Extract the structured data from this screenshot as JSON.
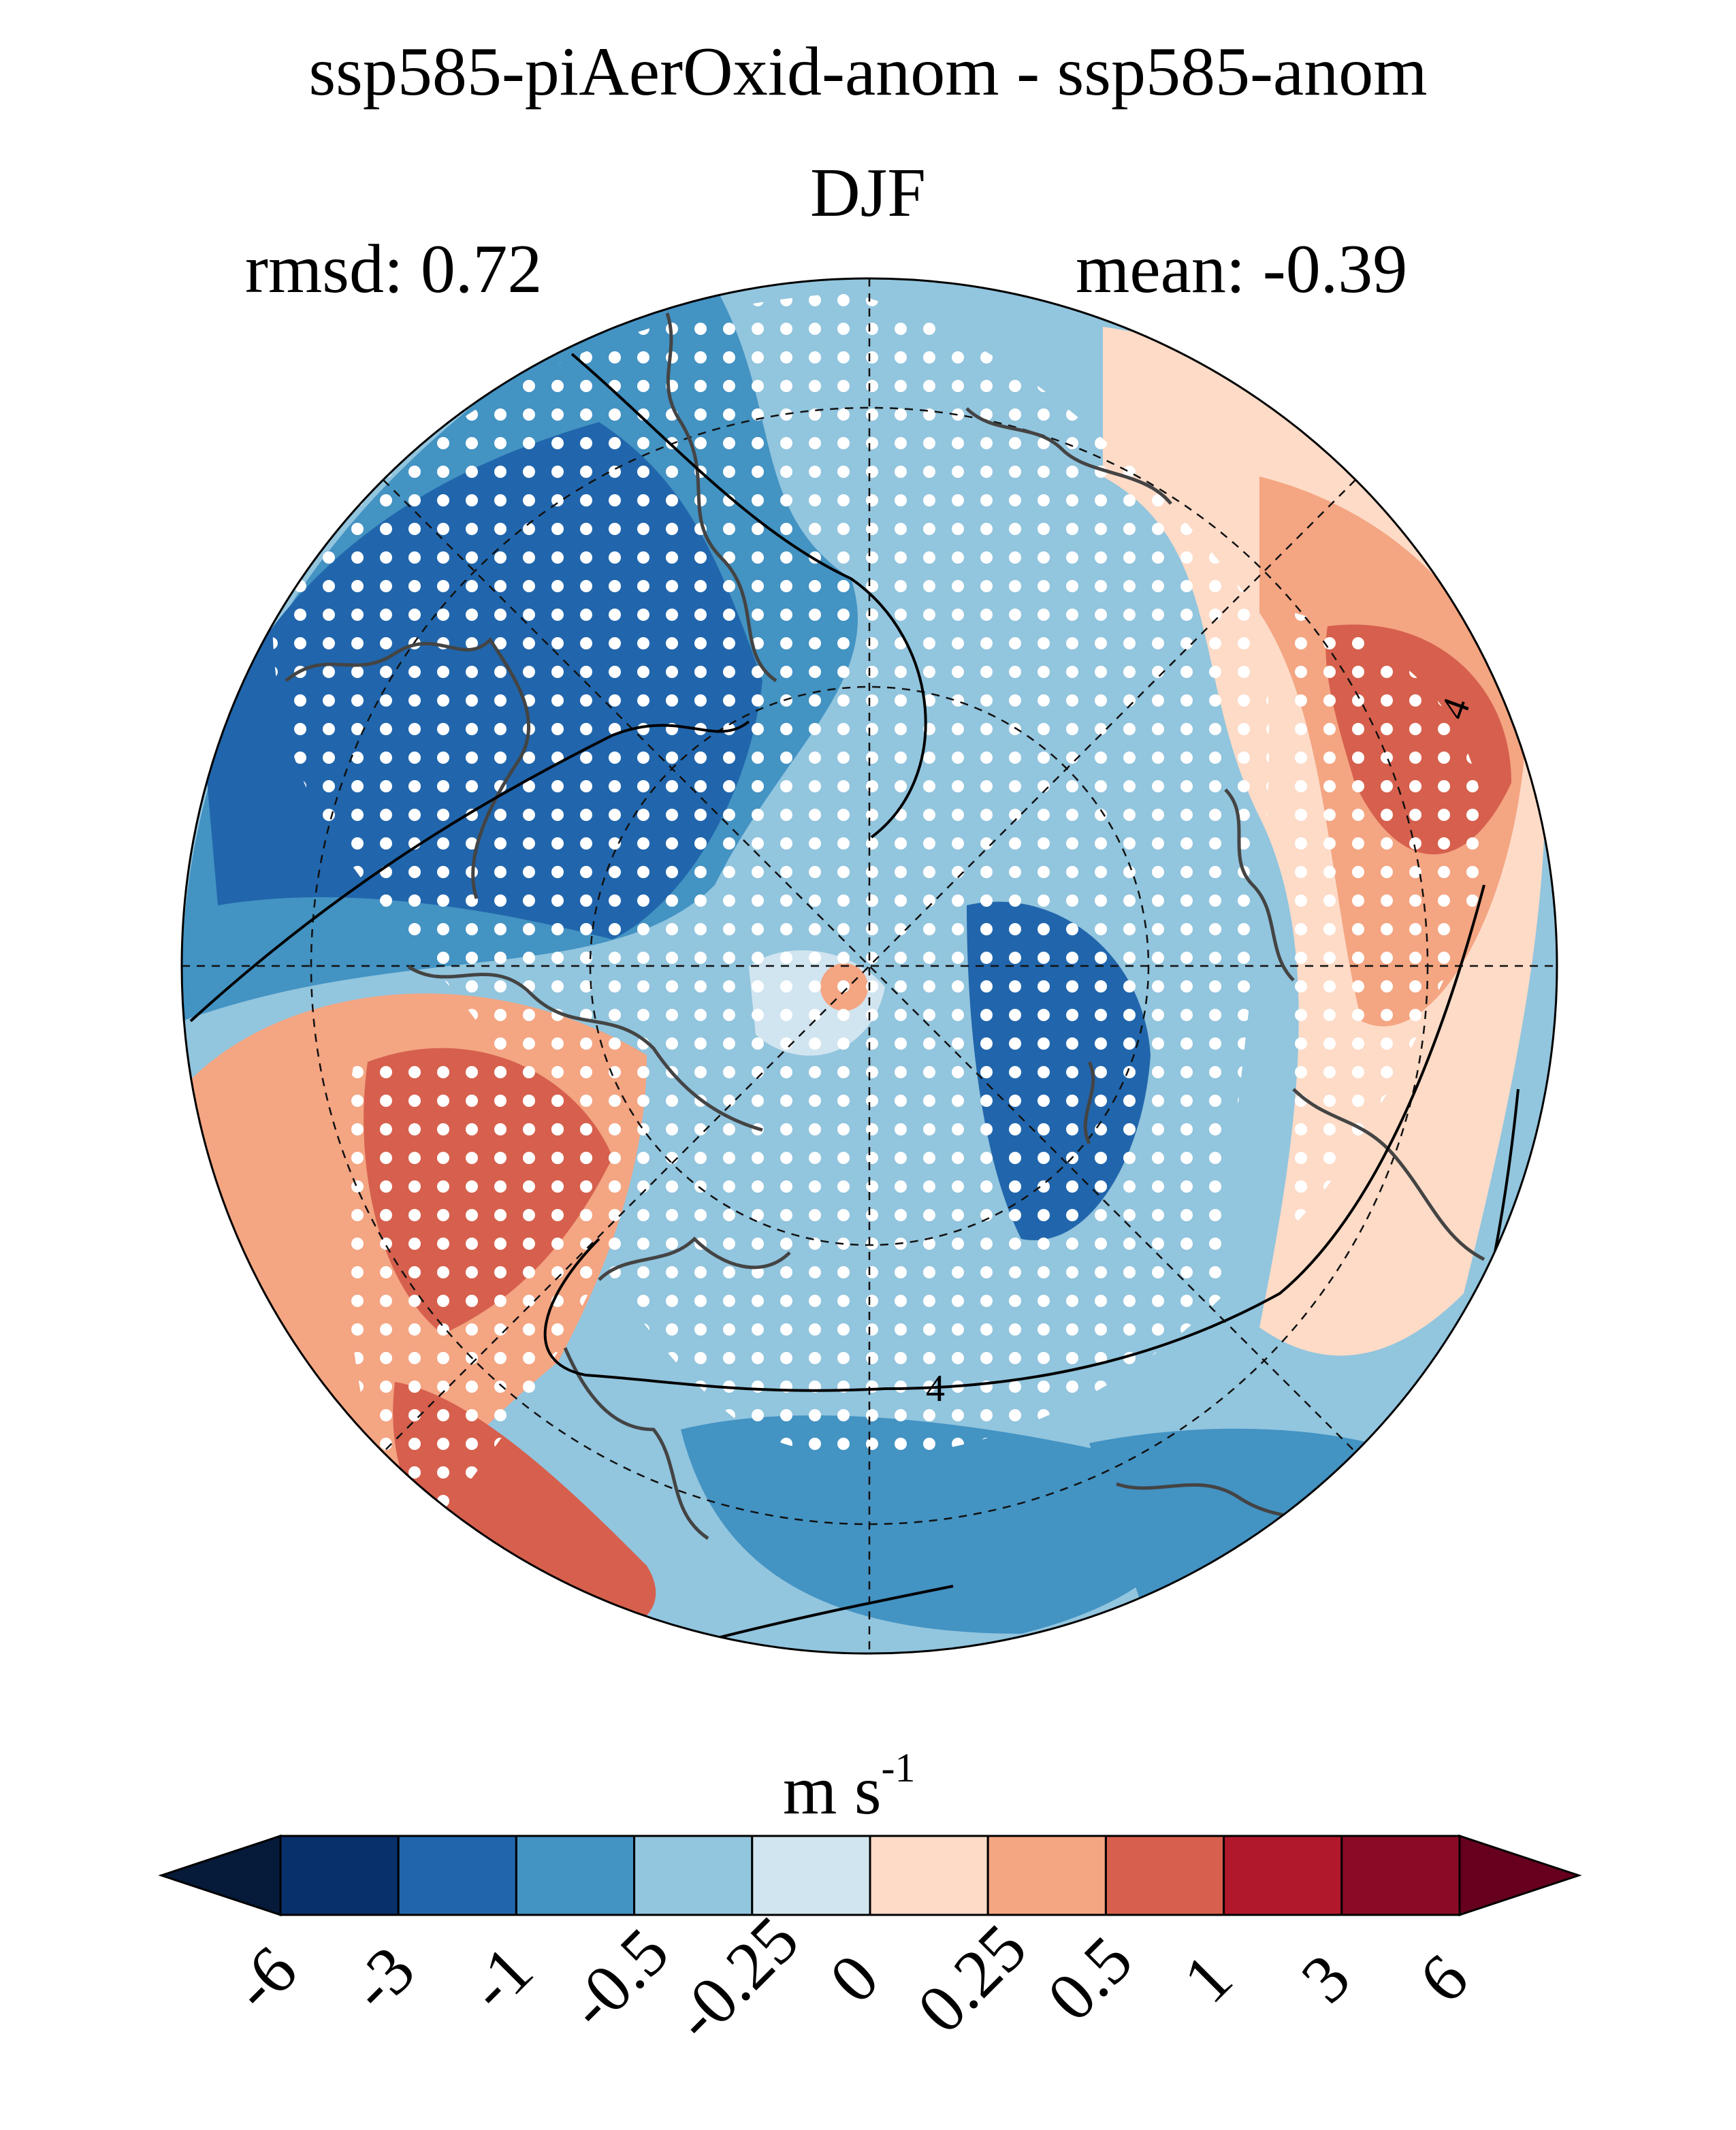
{
  "chart_data": {
    "type": "heatmap",
    "projection": "north-polar-stereographic",
    "title": "ssp585-piAerOxid-anom - ssp585-anom",
    "season": "DJF",
    "rmsd_text": "rmsd: 0.72",
    "mean_text": "mean: -0.39",
    "colorbar": {
      "unit_base": "m s",
      "unit_exp": "-1",
      "ticks": [
        "-6",
        "-3",
        "-1",
        "-0.5",
        "-0.25",
        "0",
        "0.25",
        "0.5",
        "1",
        "3",
        "6"
      ],
      "colors": [
        "#08306b",
        "#2166ac",
        "#4393c3",
        "#92c5de",
        "#d1e5f0",
        "#fddbc7",
        "#f4a582",
        "#d6604d",
        "#b2182b",
        "#8b0a26"
      ],
      "under_color": "#061a3a",
      "over_color": "#67001f",
      "extend": "both"
    },
    "contour_labels": [
      "4",
      "4"
    ],
    "stippling": "significance dots (white)"
  }
}
